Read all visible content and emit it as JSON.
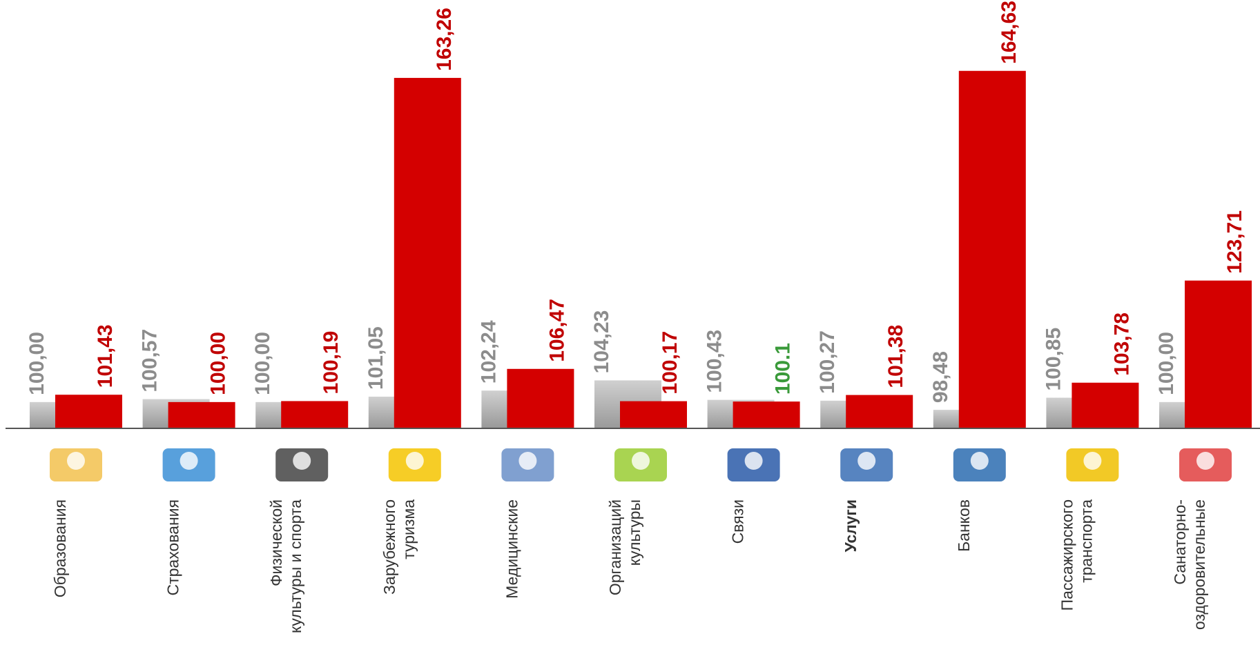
{
  "chart_data": {
    "type": "bar",
    "categories": [
      [
        "Образования"
      ],
      [
        "Страхования"
      ],
      [
        "Физической",
        "культуры и спорта"
      ],
      [
        "Зарубежного",
        "туризма"
      ],
      [
        "Медицинские"
      ],
      [
        "Организаций",
        "культуры"
      ],
      [
        "Связи"
      ],
      [
        "Услуги"
      ],
      [
        "Банков"
      ],
      [
        "Пассажирского",
        "транспорта"
      ],
      [
        "Санаторно-",
        "оздоровительные"
      ]
    ],
    "emphasized_index": 7,
    "series": [
      {
        "color": "#a6a6a6",
        "label_color": "#8c8c8c",
        "values": [
          100.0,
          100.57,
          100.0,
          101.05,
          102.24,
          104.23,
          100.43,
          100.27,
          98.48,
          100.85,
          100.0
        ],
        "value_labels": [
          "100,00",
          "100,57",
          "100,00",
          "101,05",
          "102,24",
          "104,23",
          "100,43",
          "100,27",
          "98,48",
          "100,85",
          "100,00"
        ]
      },
      {
        "color": "#d40000",
        "label_color": "#c00000",
        "values": [
          101.43,
          100.0,
          100.19,
          163.26,
          106.47,
          100.17,
          100.1,
          101.38,
          164.63,
          103.78,
          123.71
        ],
        "value_labels": [
          "101,43",
          "100,00",
          "100,19",
          "163,26",
          "106,47",
          "100,17",
          "100.1",
          "101,38",
          "164,63",
          "103,78",
          "123,71"
        ],
        "label_colors": [
          "#c00000",
          "#c00000",
          "#c00000",
          "#c00000",
          "#c00000",
          "#c00000",
          "#3a9a3a",
          "#c00000",
          "#c00000",
          "#c00000",
          "#c00000"
        ]
      }
    ],
    "ylim": [
      95,
      165
    ]
  }
}
